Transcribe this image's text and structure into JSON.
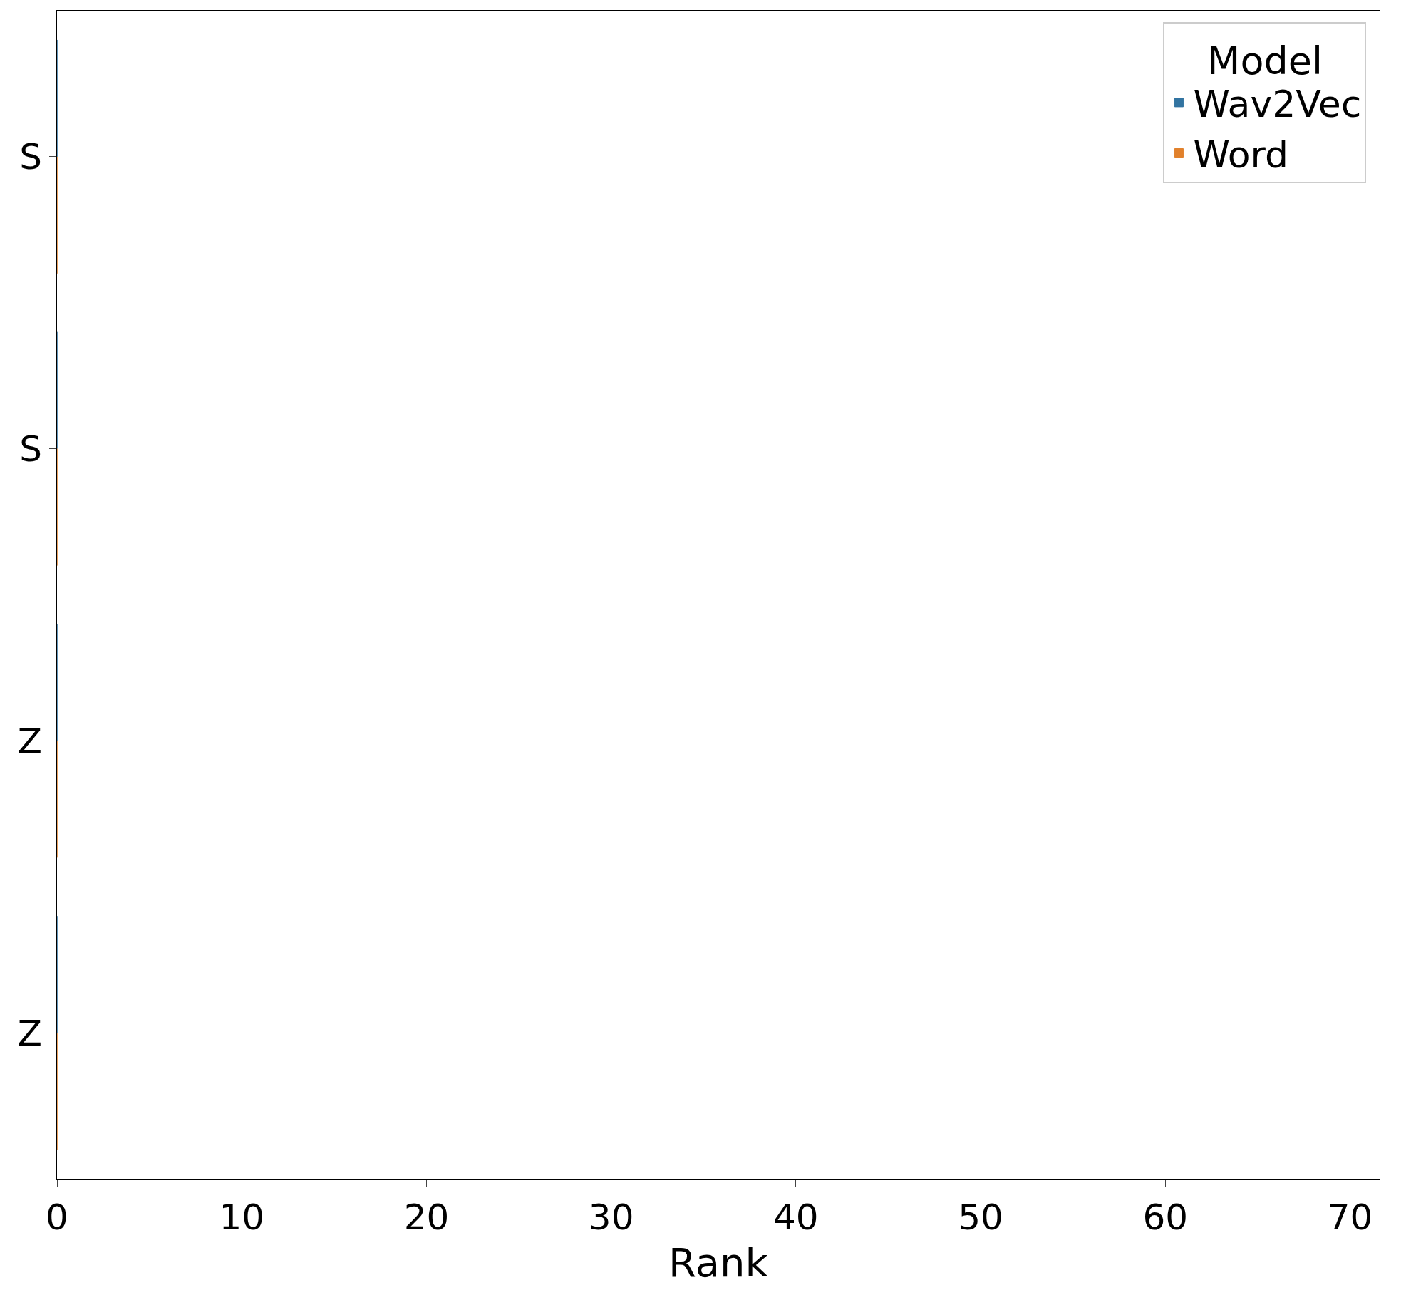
{
  "chart_data": {
    "type": "bar",
    "orientation": "horizontal",
    "xlabel": "Rank",
    "legend_title": "Model",
    "legend": "top right",
    "categories": [
      "S",
      "S",
      "Z",
      "Z"
    ],
    "series": [
      {
        "name": "Wav2Vec",
        "color": "#3274a1",
        "values": [
          0,
          0,
          0,
          0
        ]
      },
      {
        "name": "Word",
        "color": "#e1812c",
        "values": [
          0,
          0,
          0,
          0
        ]
      }
    ],
    "xlim": [
      0,
      71.6
    ],
    "xticks": [
      0,
      10,
      20,
      30,
      40,
      50,
      60,
      70
    ]
  }
}
